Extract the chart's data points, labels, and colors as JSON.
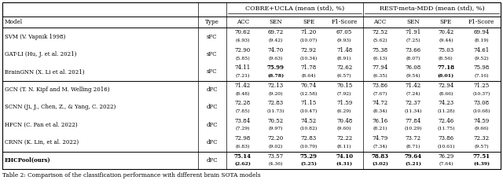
{
  "title": "Table 2: Comparison of the classification performance with different brain SOTA models",
  "rows": [
    {
      "model": "SVM (V. Vapnik 1998)",
      "type": "sFC",
      "vals": [
        "70.62",
        "69.72",
        "71.20",
        "67.05",
        "72.52",
        "71.91",
        "70.42",
        "69.94"
      ],
      "stds": [
        "(4.93)",
        "(9.42)",
        "(10.07)",
        "(9.93)",
        "(5.62)",
        "(7.25)",
        "(9.44)",
        "(8.19)"
      ],
      "bold": []
    },
    {
      "model": "GAT-LI (Hu, J. et al. 2021)",
      "type": "sFC",
      "vals": [
        "72.90",
        "74.70",
        "72.92",
        "71.48",
        "75.38",
        "73.66",
        "75.03",
        "74.61"
      ],
      "stds": [
        "(5.85)",
        "(9.63)",
        "(10.34)",
        "(8.91)",
        "(6.13)",
        "(8.07)",
        "(8.56)",
        "(9.52)"
      ],
      "bold": []
    },
    {
      "model": "BrainGNN (X. Li et al. 2021)",
      "type": "sFC",
      "vals": [
        "74.11",
        "75.99",
        "71.78",
        "72.62",
        "77.94",
        "76.08",
        "77.18",
        "75.98"
      ],
      "stds": [
        "(7.21)",
        "(8.78)",
        "(8.64)",
        "(6.57)",
        "(6.35)",
        "(9.54)",
        "(8.01)",
        "(7.16)"
      ],
      "bold": [
        1,
        6
      ]
    },
    {
      "model": "GCN (T. N. Kipf and M. Welling 2016)",
      "type": "dFC",
      "vals": [
        "71.42",
        "72.13",
        "70.74",
        "70.15",
        "73.86",
        "71.42",
        "72.94",
        "71.25"
      ],
      "stds": [
        "(8.48)",
        "(9.20)",
        "(12.58)",
        "(7.92)",
        "(7.67)",
        "(7.24)",
        "(8.66)",
        "(10.37)"
      ],
      "bold": []
    },
    {
      "model": "SCNN (Ji, J., Chen, Z., & Yang, C. 2022)",
      "type": "dFC",
      "vals": [
        "72.28",
        "72.83",
        "71.15",
        "71.59",
        "74.72",
        "72.37",
        "74.23",
        "73.08"
      ],
      "stds": [
        "(7.85)",
        "(11.73)",
        "(10.47)",
        "(6.29)",
        "(8.34)",
        "(11.34)",
        "(11.28)",
        "(10.68)"
      ],
      "bold": []
    },
    {
      "model": "HFCN (C. Pan et al. 2022)",
      "type": "dFC",
      "vals": [
        "73.84",
        "70.52",
        "74.52",
        "70.48",
        "76.16",
        "77.84",
        "72.46",
        "74.59"
      ],
      "stds": [
        "(7.29)",
        "(9.97)",
        "(10.82)",
        "(9.60)",
        "(8.21)",
        "(10.29)",
        "(11.75)",
        "(9.66)"
      ],
      "bold": []
    },
    {
      "model": "CRNN (K. Lin, et al. 2022)",
      "type": "dFC",
      "vals": [
        "72.98",
        "72.20",
        "72.83",
        "72.22",
        "74.79",
        "73.72",
        "73.86",
        "72.32"
      ],
      "stds": [
        "(6.83)",
        "(9.02)",
        "(10.79)",
        "(8.11)",
        "(7.34)",
        "(8.71)",
        "(10.61)",
        "(9.57)"
      ],
      "bold": []
    },
    {
      "model": "EHCPool(ours)",
      "type": "dFC",
      "vals": [
        "75.14",
        "73.57",
        "75.29",
        "74.10",
        "78.83",
        "79.64",
        "76.29",
        "77.51"
      ],
      "stds": [
        "(2.62)",
        "(4.36)",
        "(5.25)",
        "(4.31)",
        "(3.02)",
        "(5.21)",
        "(7.64)",
        "(4.39)"
      ],
      "bold": [
        0,
        2,
        3,
        4,
        5,
        7
      ]
    }
  ],
  "background_color": "#ffffff"
}
